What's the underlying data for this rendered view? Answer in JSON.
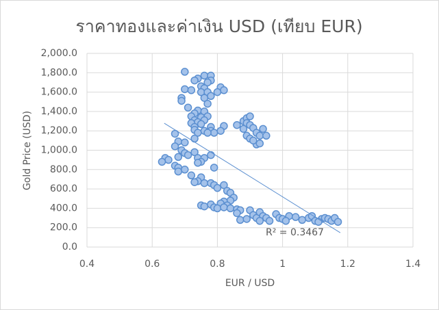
{
  "chart_data": {
    "type": "scatter",
    "title": "ราคาทองและค่าเงิน  USD (เทียบ EUR)",
    "x_label": "EUR / USD",
    "y_label": "Gold Price (USD)",
    "marker_fill": "#a4c2ea",
    "color": "#5b8fd0",
    "xlim": [
      0.4,
      1.4
    ],
    "xticks": [
      0.4,
      0.6,
      0.8,
      1,
      1.2,
      1.4
    ],
    "ylim": [
      0,
      2000
    ],
    "yticks": [
      {
        "value": 0,
        "label": "0.0"
      },
      {
        "value": 200,
        "label": "200.0"
      },
      {
        "value": 400,
        "label": "400.0"
      },
      {
        "value": 600,
        "label": "600.0"
      },
      {
        "value": 800,
        "label": "800.0"
      },
      {
        "value": 1000,
        "label": "1,000.0"
      },
      {
        "value": 1200,
        "label": "1,200.0"
      },
      {
        "value": 1400,
        "label": "1,400.0"
      },
      {
        "value": 1600,
        "label": "1,600.0"
      },
      {
        "value": 1800,
        "label": "1,800.0"
      },
      {
        "value": 2000,
        "label": "2,000.0"
      }
    ],
    "grid": true,
    "x": [
      0.7,
      0.74,
      0.73,
      0.76,
      0.78,
      0.78,
      0.77,
      0.75,
      0.76,
      0.7,
      0.72,
      0.75,
      0.77,
      0.81,
      0.82,
      0.8,
      0.78,
      0.76,
      0.69,
      0.69,
      0.77,
      0.71,
      0.74,
      0.76,
      0.73,
      0.72,
      0.75,
      0.77,
      0.73,
      0.76,
      0.74,
      0.72,
      0.75,
      0.73,
      0.78,
      0.82,
      0.76,
      0.78,
      0.79,
      0.81,
      0.73,
      0.74,
      0.73,
      0.77,
      0.86,
      0.88,
      0.89,
      0.9,
      0.89,
      0.9,
      0.88,
      0.89,
      0.9,
      0.91,
      0.92,
      0.93,
      0.94,
      0.95,
      0.92,
      0.93,
      0.91,
      0.67,
      0.68,
      0.7,
      0.67,
      0.69,
      0.7,
      0.71,
      0.68,
      0.73,
      0.74,
      0.76,
      0.78,
      0.75,
      0.74,
      0.64,
      0.65,
      0.63,
      0.67,
      0.68,
      0.7,
      0.68,
      0.79,
      0.72,
      0.75,
      0.74,
      0.73,
      0.76,
      0.78,
      0.79,
      0.8,
      0.82,
      0.83,
      0.84,
      0.85,
      0.84,
      0.82,
      0.81,
      0.83,
      0.75,
      0.76,
      0.78,
      0.79,
      0.8,
      0.82,
      0.84,
      0.86,
      0.87,
      0.86,
      0.87,
      0.9,
      0.91,
      0.92,
      0.93,
      0.94,
      0.95,
      0.96,
      0.98,
      0.99,
      1.0,
      1.02,
      1.04,
      1.06,
      1.08,
      1.09,
      1.1,
      1.12,
      1.13,
      1.14,
      1.15,
      1.16,
      1.17,
      0.89,
      0.93,
      1.01,
      1.11
    ],
    "values": [
      1810,
      1740,
      1720,
      1770,
      1770,
      1720,
      1700,
      1660,
      1640,
      1630,
      1620,
      1600,
      1600,
      1650,
      1620,
      1600,
      1560,
      1540,
      1540,
      1510,
      1480,
      1440,
      1410,
      1400,
      1380,
      1350,
      1340,
      1350,
      1310,
      1310,
      1290,
      1280,
      1270,
      1240,
      1240,
      1250,
      1200,
      1200,
      1180,
      1200,
      1210,
      1180,
      1120,
      1180,
      1260,
      1300,
      1330,
      1350,
      1280,
      1260,
      1220,
      1150,
      1120,
      1230,
      1180,
      1150,
      1220,
      1150,
      1060,
      1070,
      1100,
      1170,
      1090,
      1080,
      1040,
      1000,
      970,
      950,
      930,
      980,
      920,
      920,
      950,
      880,
      870,
      920,
      900,
      880,
      840,
      820,
      800,
      780,
      820,
      740,
      720,
      680,
      670,
      660,
      660,
      640,
      610,
      640,
      580,
      560,
      510,
      480,
      470,
      450,
      430,
      430,
      420,
      440,
      410,
      400,
      410,
      400,
      390,
      380,
      350,
      280,
      380,
      330,
      300,
      360,
      320,
      300,
      270,
      340,
      300,
      290,
      320,
      310,
      280,
      300,
      320,
      270,
      290,
      300,
      290,
      270,
      300,
      260,
      290,
      270,
      270,
      260
    ],
    "trendline": {
      "x": [
        0.637,
        1.177
      ],
      "y": [
        1279,
        148
      ],
      "label": "R² = 0.3467"
    }
  }
}
